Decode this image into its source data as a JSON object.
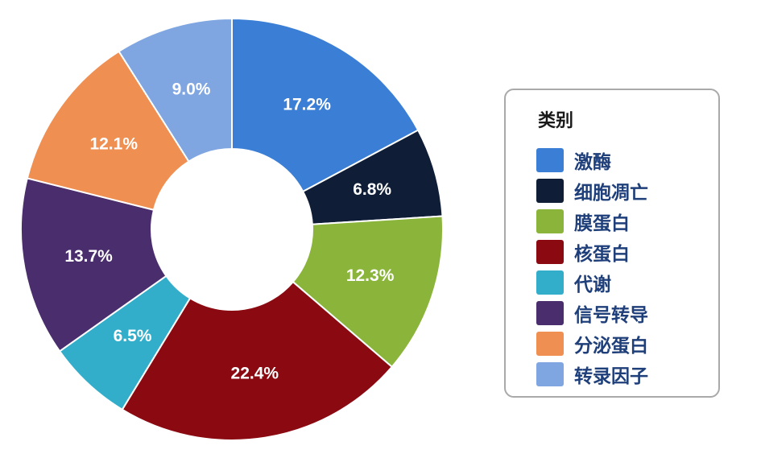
{
  "chart_data": {
    "type": "pie",
    "donut": true,
    "categories": [
      "激酶",
      "细胞凋亡",
      "膜蛋白",
      "核蛋白",
      "代谢",
      "信号转导",
      "分泌蛋白",
      "转录因子"
    ],
    "values": [
      17.2,
      6.8,
      12.3,
      22.4,
      6.5,
      13.7,
      12.1,
      9.0
    ],
    "labels": [
      "17.2%",
      "6.8%",
      "12.3%",
      "22.4%",
      "6.5%",
      "13.7%",
      "12.1%",
      "9.0%"
    ],
    "colors": [
      "#3a7fd5",
      "#0f1e36",
      "#8ab43a",
      "#8b0a12",
      "#32aecb",
      "#4a2d6d",
      "#ef8f52",
      "#7fa6e1"
    ],
    "start_angle": "top",
    "direction": "clockwise",
    "legend": {
      "title": "类别",
      "position": "right"
    }
  }
}
